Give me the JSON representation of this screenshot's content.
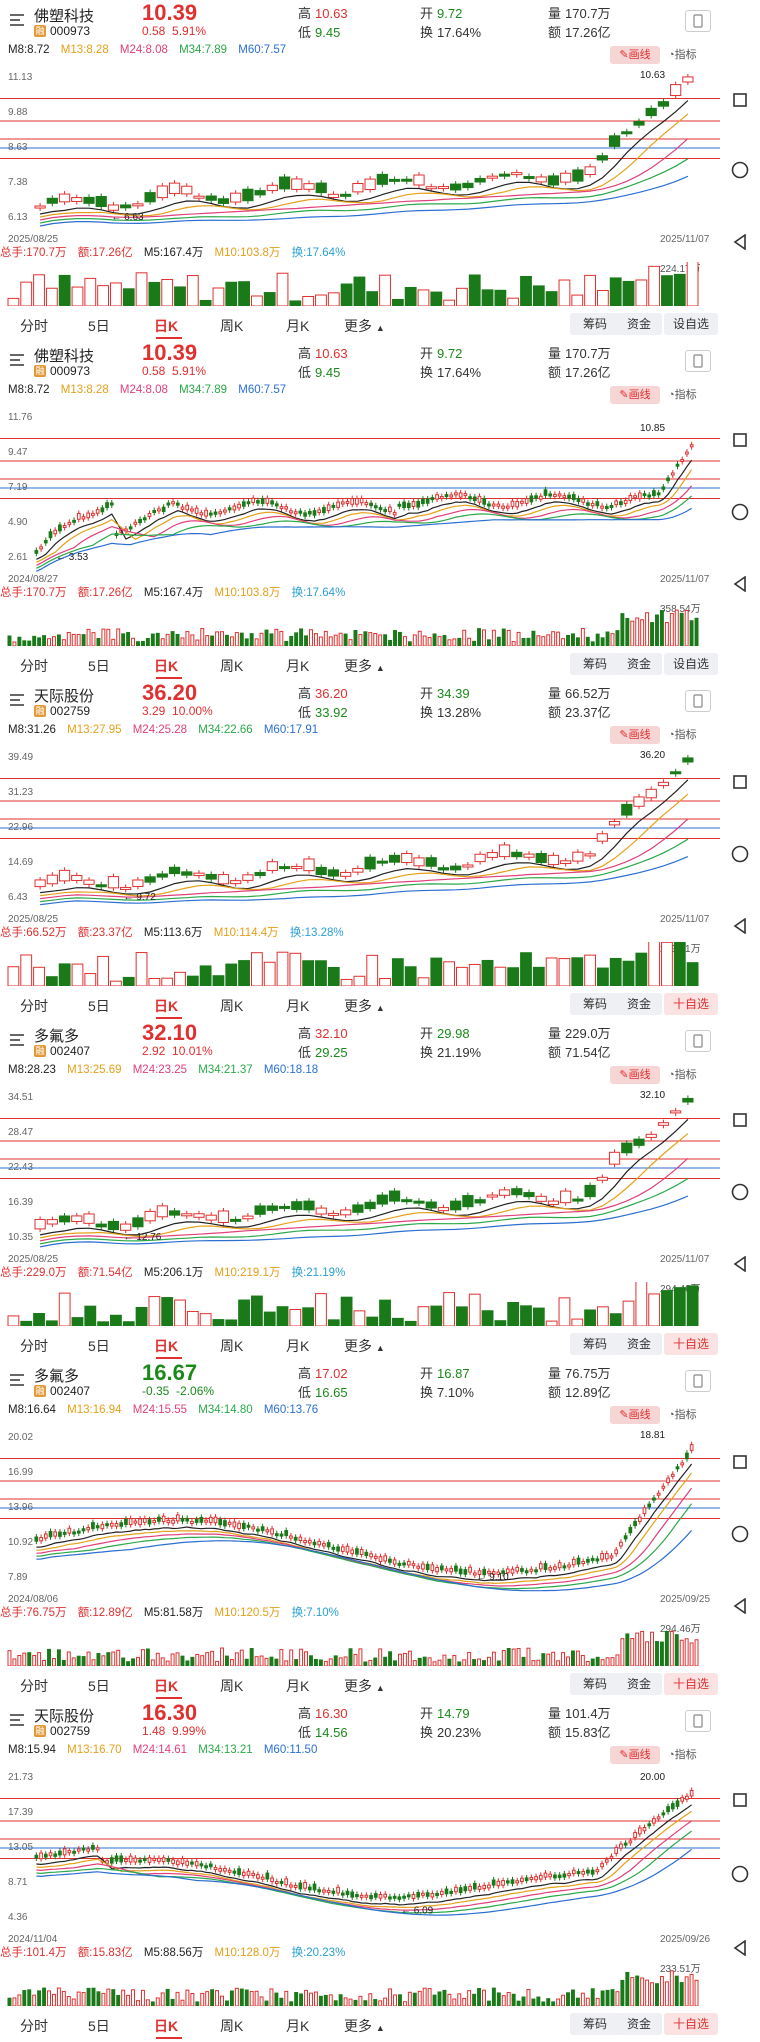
{
  "common": {
    "draw_btn": "画线",
    "indicator_btn": "指标",
    "tabs": [
      "分时",
      "5日",
      "日K",
      "周K",
      "月K",
      "更多"
    ],
    "btn_chip": "筹码",
    "btn_fund": "资金"
  },
  "panels": [
    {
      "name": "佛塑科技",
      "code": "000973",
      "price": "10.39",
      "chg": "0.58",
      "pct": "5.91%",
      "dir": "up",
      "high": "10.63",
      "low": "9.45",
      "open": "9.72",
      "turn": "17.64%",
      "vol": "170.7万",
      "amt": "17.26亿",
      "mline": {
        "m8": "M8:8.72",
        "m13": "M13:8.28",
        "m24": "M24:8.08",
        "m34": "M34:7.89",
        "m60": "M60:7.57"
      },
      "yticks": [
        "11.13",
        "9.88",
        "8.63",
        "7.38",
        "6.13"
      ],
      "hi_label": "10.63",
      "lo_label": "6.63",
      "date_start": "2025/08/25",
      "date_end": "2025/11/07",
      "stats": {
        "vol": "总手:170.7万",
        "amt": "额:17.26亿",
        "m5": "M5:167.4万",
        "m10": "M10:103.8万",
        "turn": "换:17.64%"
      },
      "vmax": "224.17万",
      "fav": "设自选",
      "fav_hot": false,
      "style": "short"
    },
    {
      "name": "佛塑科技",
      "code": "000973",
      "price": "10.39",
      "chg": "0.58",
      "pct": "5.91%",
      "dir": "up",
      "high": "10.63",
      "low": "9.45",
      "open": "9.72",
      "turn": "17.64%",
      "vol": "170.7万",
      "amt": "17.26亿",
      "mline": {
        "m8": "M8:8.72",
        "m13": "M13:8.28",
        "m24": "M24:8.08",
        "m34": "M34:7.89",
        "m60": "M60:7.57"
      },
      "yticks": [
        "11.76",
        "9.47",
        "7.19",
        "4.90",
        "2.61"
      ],
      "hi_label": "10.85",
      "lo_label": "3.53",
      "date_start": "2024/08/27",
      "date_end": "2025/11/07",
      "stats": {
        "vol": "总手:170.7万",
        "amt": "额:17.26亿",
        "m5": "M5:167.4万",
        "m10": "M10:103.8万",
        "turn": "换:17.64%"
      },
      "vmax": "358.54万",
      "fav": "设自选",
      "fav_hot": false,
      "style": "long"
    },
    {
      "name": "天际股份",
      "code": "002759",
      "price": "36.20",
      "chg": "3.29",
      "pct": "10.00%",
      "dir": "up",
      "high": "36.20",
      "low": "33.92",
      "open": "34.39",
      "turn": "13.28%",
      "vol": "66.52万",
      "amt": "23.37亿",
      "mline": {
        "m8": "M8:31.26",
        "m13": "M13:27.95",
        "m24": "M24:25.28",
        "m34": "M34:22.66",
        "m60": "M60:17.91"
      },
      "yticks": [
        "39.49",
        "31.23",
        "22.96",
        "14.69",
        "6.43"
      ],
      "hi_label": "36.20",
      "lo_label": "9.72",
      "date_start": "2025/08/25",
      "date_end": "2025/11/07",
      "stats": {
        "vol": "总手:66.52万",
        "amt": "额:23.37亿",
        "m5": "M5:113.6万",
        "m10": "M10:114.4万",
        "turn": "换:13.28%"
      },
      "vmax": "233.51万",
      "fav": "十自选",
      "fav_hot": true,
      "style": "short"
    },
    {
      "name": "多氟多",
      "code": "002407",
      "price": "32.10",
      "chg": "2.92",
      "pct": "10.01%",
      "dir": "up",
      "high": "32.10",
      "low": "29.25",
      "open": "29.98",
      "turn": "21.19%",
      "vol": "229.0万",
      "amt": "71.54亿",
      "mline": {
        "m8": "M8:28.23",
        "m13": "M13:25.69",
        "m24": "M24:23.25",
        "m34": "M34:21.37",
        "m60": "M60:18.18"
      },
      "yticks": [
        "34.51",
        "28.47",
        "22.43",
        "16.39",
        "10.35"
      ],
      "hi_label": "32.10",
      "lo_label": "12.76",
      "date_start": "2025/08/25",
      "date_end": "2025/11/07",
      "stats": {
        "vol": "总手:229.0万",
        "amt": "额:71.54亿",
        "m5": "M5:206.1万",
        "m10": "M10:219.1万",
        "turn": "换:21.19%"
      },
      "vmax": "294.46万",
      "fav": "十自选",
      "fav_hot": true,
      "style": "short"
    },
    {
      "name": "多氟多",
      "code": "002407",
      "price": "16.67",
      "chg": "-0.35",
      "pct": "-2.06%",
      "dir": "dn",
      "high": "17.02",
      "low": "16.65",
      "open": "16.87",
      "turn": "7.10%",
      "vol": "76.75万",
      "amt": "12.89亿",
      "mline": {
        "m8": "M8:16.64",
        "m13": "M13:16.94",
        "m24": "M24:15.55",
        "m34": "M34:14.80",
        "m60": "M60:13.76"
      },
      "yticks": [
        "20.02",
        "16.99",
        "13.96",
        "10.92",
        "7.89"
      ],
      "hi_label": "18.81",
      "lo_label": "9.10",
      "date_start": "2024/08/06",
      "date_end": "2025/09/25",
      "stats": {
        "vol": "总手:76.75万",
        "amt": "额:12.89亿",
        "m5": "M5:81.58万",
        "m10": "M10:120.5万",
        "turn": "换:7.10%"
      },
      "vmax": "294.46万",
      "fav": "十自选",
      "fav_hot": true,
      "style": "long2"
    },
    {
      "name": "天际股份",
      "code": "002759",
      "price": "16.30",
      "chg": "1.48",
      "pct": "9.99%",
      "dir": "up",
      "high": "16.30",
      "low": "14.56",
      "open": "14.79",
      "turn": "20.23%",
      "vol": "101.4万",
      "amt": "15.83亿",
      "mline": {
        "m8": "M8:15.94",
        "m13": "M13:16.70",
        "m24": "M24:14.61",
        "m34": "M34:13.21",
        "m60": "M60:11.50"
      },
      "yticks": [
        "21.73",
        "17.39",
        "13.05",
        "8.71",
        "4.36"
      ],
      "hi_label": "20.00",
      "lo_label": "6.09",
      "date_start": "2024/11/04",
      "date_end": "2025/09/26",
      "stats": {
        "vol": "总手:101.4万",
        "amt": "额:15.83亿",
        "m5": "M5:88.56万",
        "m10": "M10:128.0万",
        "turn": "换:20.23%"
      },
      "vmax": "233.51万",
      "fav": "十自选",
      "fav_hot": true,
      "style": "long3"
    }
  ],
  "labels": {
    "high": "高",
    "low": "低",
    "open": "开",
    "turn": "换",
    "vol": "量",
    "amt": "额"
  }
}
